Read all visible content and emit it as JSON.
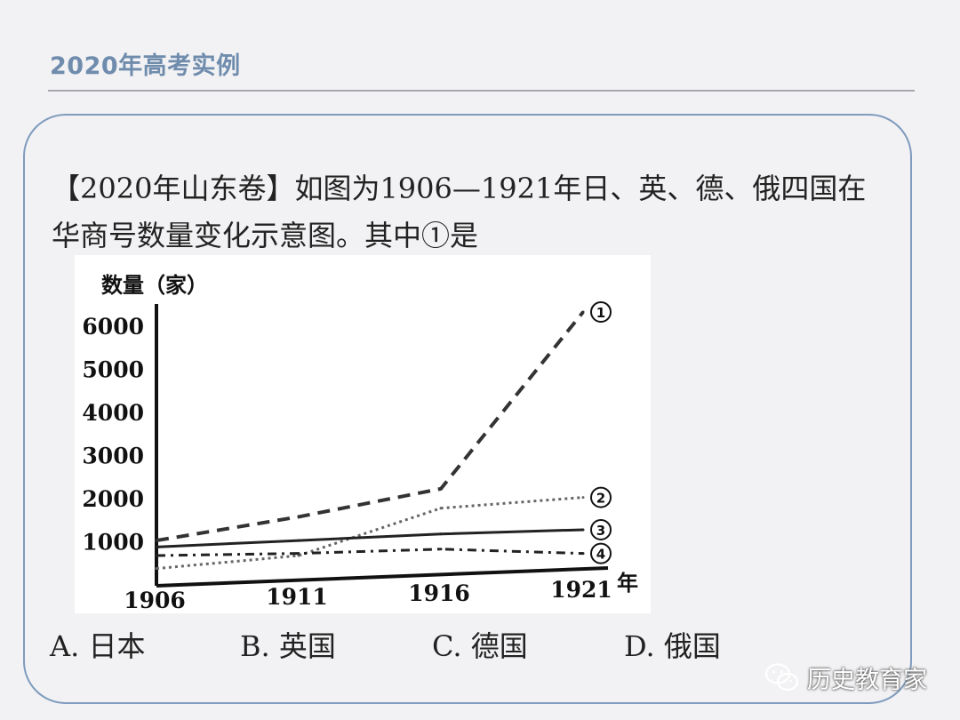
{
  "slide": {
    "title": "2020年高考实例"
  },
  "question": {
    "text": "【2020年山东卷】如图为1906—1921年日、英、德、俄四国在华商号数量变化示意图。其中①是"
  },
  "options": [
    {
      "label": "A.",
      "text": "日本"
    },
    {
      "label": "B.",
      "text": "英国"
    },
    {
      "label": "C.",
      "text": "德国"
    },
    {
      "label": "D.",
      "text": "俄国"
    }
  ],
  "watermark": {
    "text": "历史教育家",
    "icon": "wechat-icon"
  },
  "chart_data": {
    "type": "line",
    "ylabel": "数量（家）",
    "xlabel": "年",
    "x": [
      "1906",
      "1911",
      "1916",
      "1921"
    ],
    "yticks": [
      "1000",
      "2000",
      "3000",
      "4000",
      "5000",
      "6000"
    ],
    "ylim": [
      0,
      6500
    ],
    "grid": false,
    "legend": "none (series marked at line ends)",
    "series": [
      {
        "name": "①",
        "style": "dashed",
        "values": [
          1050,
          1600,
          2250,
          6350
        ]
      },
      {
        "name": "②",
        "style": "dotted",
        "values": [
          400,
          700,
          1800,
          2050
        ]
      },
      {
        "name": "③",
        "style": "solid",
        "values": [
          900,
          1050,
          1200,
          1300
        ]
      },
      {
        "name": "④",
        "style": "dash-dot",
        "values": [
          700,
          750,
          850,
          750
        ]
      }
    ]
  }
}
